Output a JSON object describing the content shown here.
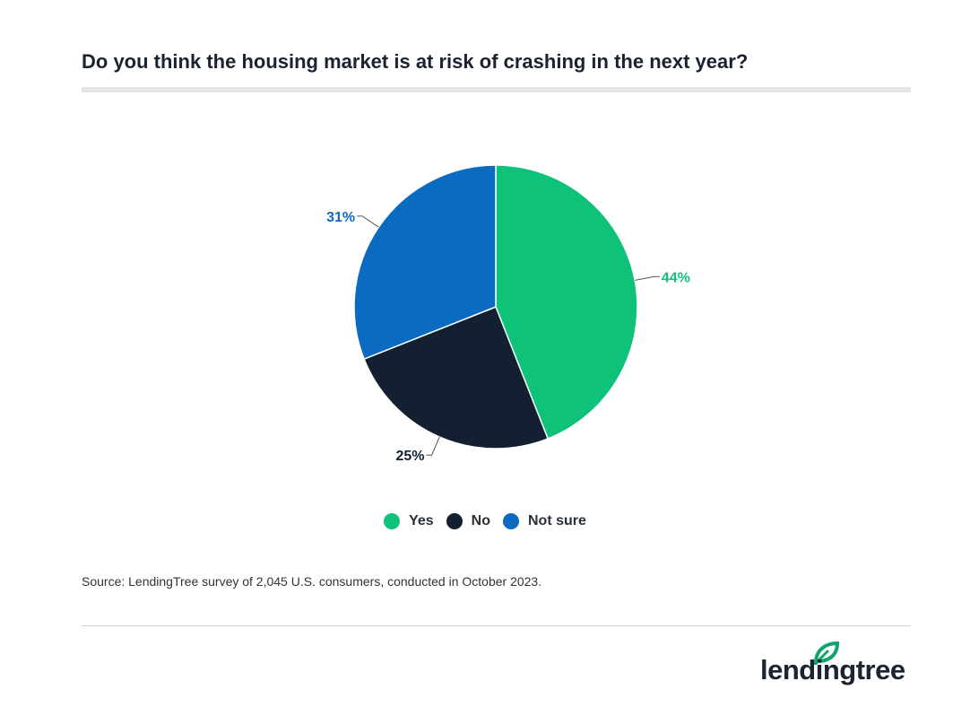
{
  "title": "Do you think the housing market is at risk of crashing in the next year?",
  "source": "Source: LendingTree survey of 2,045 U.S. consumers, conducted in October 2023.",
  "brand": "lendingtree",
  "colors": {
    "yes": "#0fc27a",
    "no": "#132032",
    "not_sure": "#0a6bc1"
  },
  "legend": [
    {
      "label": "Yes",
      "color": "#0fc27a"
    },
    {
      "label": "No",
      "color": "#132032"
    },
    {
      "label": "Not sure",
      "color": "#0a6bc1"
    }
  ],
  "chart_data": {
    "type": "pie",
    "title": "Do you think the housing market is at risk of crashing in the next year?",
    "categories": [
      "Yes",
      "No",
      "Not sure"
    ],
    "values": [
      44,
      25,
      31
    ],
    "labels": [
      "44%",
      "25%",
      "31%"
    ],
    "colors": [
      "#0fc27a",
      "#132032",
      "#0a6bc1"
    ],
    "legend_position": "bottom"
  }
}
